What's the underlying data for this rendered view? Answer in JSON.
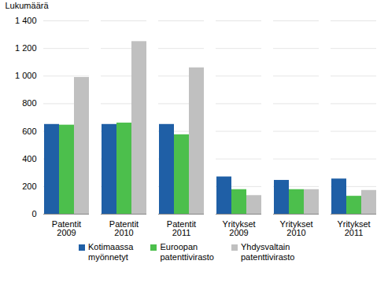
{
  "chart_data": {
    "type": "bar",
    "y_label": "Lukumäärä",
    "categories": [
      "Patentit 2009",
      "Patentit 2010",
      "Patentit 2011",
      "Yritykset 2009",
      "Yritykset 2010",
      "Yritykset 2011"
    ],
    "series": [
      {
        "name": "Kotimaassa myönnetyt",
        "color": "#1f5fa6",
        "values": [
          650,
          650,
          650,
          270,
          245,
          255
        ]
      },
      {
        "name": "Euroopan patenttivirasto",
        "color": "#4cbf4c",
        "values": [
          645,
          660,
          575,
          178,
          178,
          130
        ]
      },
      {
        "name": "Yhdysvaltain patenttivirasto",
        "color": "#c0c0c0",
        "values": [
          990,
          1250,
          1060,
          135,
          178,
          172
        ]
      }
    ],
    "ylim": [
      0,
      1400
    ],
    "yticks": [
      0,
      200,
      400,
      600,
      800,
      {
        "value": 1000,
        "label": "1 000"
      },
      {
        "value": 1200,
        "label": "1 200"
      },
      {
        "value": 1400,
        "label": "1 400"
      }
    ],
    "grid": true,
    "legend": "bottom"
  }
}
